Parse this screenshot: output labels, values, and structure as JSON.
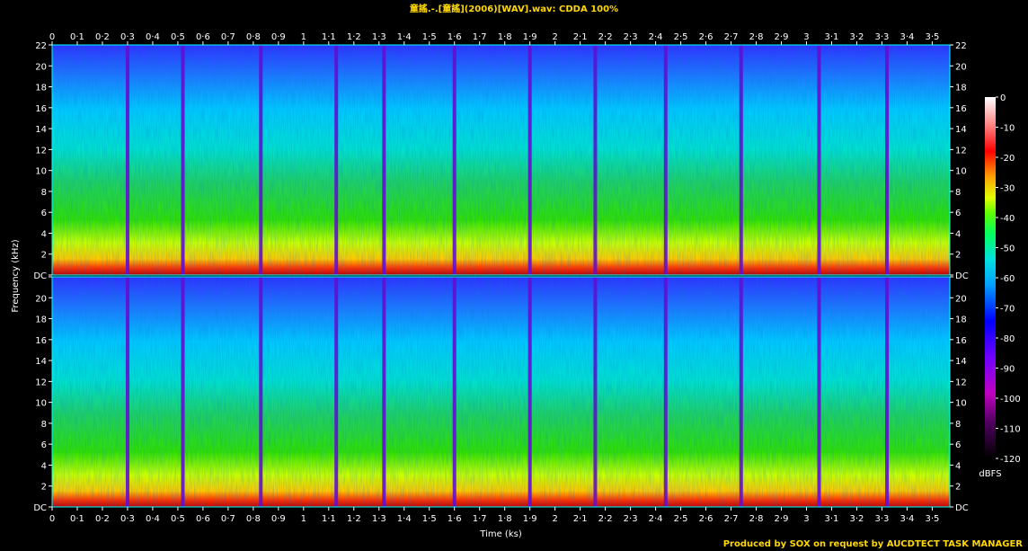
{
  "chart_data": {
    "type": "heatmap",
    "title": "童謠.-.[童謠](2006)[WAV].wav: CDDA 100%",
    "xlabel": "Time (ks)",
    "ylabel": "Frequency (kHz)",
    "x_tick_labels": [
      "0",
      "0·1",
      "0·2",
      "0·3",
      "0·4",
      "0·5",
      "0·6",
      "0·7",
      "0·8",
      "0·9",
      "1",
      "1·1",
      "1·2",
      "1·3",
      "1·4",
      "1·5",
      "1·6",
      "1·7",
      "1·8",
      "1·9",
      "2",
      "2·1",
      "2·2",
      "2·3",
      "2·4",
      "2·5",
      "2·6",
      "2·7",
      "2·8",
      "2·9",
      "3",
      "3·1",
      "3·2",
      "3·3",
      "3·4",
      "3·5"
    ],
    "xlim": [
      0,
      3.57
    ],
    "ylim": [
      0,
      22.05
    ],
    "y_tick_labels": [
      "DC",
      "2",
      "4",
      "6",
      "8",
      "10",
      "12",
      "14",
      "16",
      "18",
      "20",
      "22"
    ],
    "channels": [
      "left",
      "right"
    ],
    "colorbar": {
      "label": "dBFS",
      "ticks": [
        "0",
        "-10",
        "-20",
        "-30",
        "-40",
        "-50",
        "-60",
        "-70",
        "-80",
        "-90",
        "-100",
        "-110",
        "-120"
      ],
      "range": [
        -120,
        0
      ]
    },
    "track_boundaries_ks": [
      0.3,
      0.52,
      0.83,
      1.13,
      1.32,
      1.6,
      1.9,
      2.16,
      2.44,
      2.74,
      3.05,
      3.32
    ],
    "footer": "Produced by SOX on request by AUCDTECT TASK MANAGER"
  }
}
